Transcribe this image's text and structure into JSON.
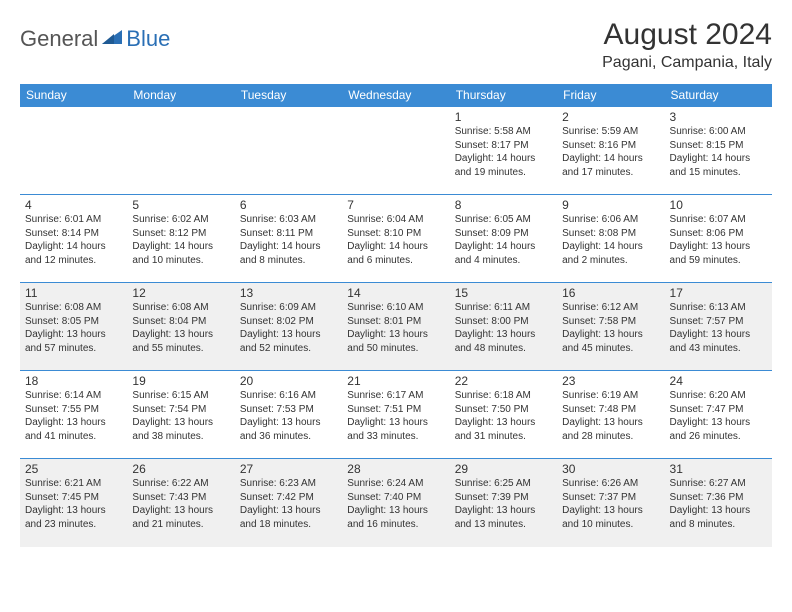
{
  "logo": {
    "general": "General",
    "blue": "Blue"
  },
  "header": {
    "title": "August 2024",
    "location": "Pagani, Campania, Italy"
  },
  "colors": {
    "header_bg": "#3b8bd4",
    "header_text": "#ffffff",
    "row_alt_bg": "#f0f0f0",
    "row_bg": "#ffffff",
    "border": "#3b8bd4",
    "text": "#333333",
    "logo_blue": "#2a6fb5",
    "logo_gray": "#555555"
  },
  "typography": {
    "title_fontsize": 30,
    "location_fontsize": 16,
    "dayhead_fontsize": 12,
    "daynum_fontsize": 12,
    "cell_fontsize": 10
  },
  "dayNames": [
    "Sunday",
    "Monday",
    "Tuesday",
    "Wednesday",
    "Thursday",
    "Friday",
    "Saturday"
  ],
  "weeks": [
    {
      "alt": false,
      "days": [
        null,
        null,
        null,
        null,
        {
          "num": "1",
          "sunrise": "5:58 AM",
          "sunset": "8:17 PM",
          "daylight": "14 hours and 19 minutes."
        },
        {
          "num": "2",
          "sunrise": "5:59 AM",
          "sunset": "8:16 PM",
          "daylight": "14 hours and 17 minutes."
        },
        {
          "num": "3",
          "sunrise": "6:00 AM",
          "sunset": "8:15 PM",
          "daylight": "14 hours and 15 minutes."
        }
      ]
    },
    {
      "alt": false,
      "days": [
        {
          "num": "4",
          "sunrise": "6:01 AM",
          "sunset": "8:14 PM",
          "daylight": "14 hours and 12 minutes."
        },
        {
          "num": "5",
          "sunrise": "6:02 AM",
          "sunset": "8:12 PM",
          "daylight": "14 hours and 10 minutes."
        },
        {
          "num": "6",
          "sunrise": "6:03 AM",
          "sunset": "8:11 PM",
          "daylight": "14 hours and 8 minutes."
        },
        {
          "num": "7",
          "sunrise": "6:04 AM",
          "sunset": "8:10 PM",
          "daylight": "14 hours and 6 minutes."
        },
        {
          "num": "8",
          "sunrise": "6:05 AM",
          "sunset": "8:09 PM",
          "daylight": "14 hours and 4 minutes."
        },
        {
          "num": "9",
          "sunrise": "6:06 AM",
          "sunset": "8:08 PM",
          "daylight": "14 hours and 2 minutes."
        },
        {
          "num": "10",
          "sunrise": "6:07 AM",
          "sunset": "8:06 PM",
          "daylight": "13 hours and 59 minutes."
        }
      ]
    },
    {
      "alt": true,
      "days": [
        {
          "num": "11",
          "sunrise": "6:08 AM",
          "sunset": "8:05 PM",
          "daylight": "13 hours and 57 minutes."
        },
        {
          "num": "12",
          "sunrise": "6:08 AM",
          "sunset": "8:04 PM",
          "daylight": "13 hours and 55 minutes."
        },
        {
          "num": "13",
          "sunrise": "6:09 AM",
          "sunset": "8:02 PM",
          "daylight": "13 hours and 52 minutes."
        },
        {
          "num": "14",
          "sunrise": "6:10 AM",
          "sunset": "8:01 PM",
          "daylight": "13 hours and 50 minutes."
        },
        {
          "num": "15",
          "sunrise": "6:11 AM",
          "sunset": "8:00 PM",
          "daylight": "13 hours and 48 minutes."
        },
        {
          "num": "16",
          "sunrise": "6:12 AM",
          "sunset": "7:58 PM",
          "daylight": "13 hours and 45 minutes."
        },
        {
          "num": "17",
          "sunrise": "6:13 AM",
          "sunset": "7:57 PM",
          "daylight": "13 hours and 43 minutes."
        }
      ]
    },
    {
      "alt": false,
      "days": [
        {
          "num": "18",
          "sunrise": "6:14 AM",
          "sunset": "7:55 PM",
          "daylight": "13 hours and 41 minutes."
        },
        {
          "num": "19",
          "sunrise": "6:15 AM",
          "sunset": "7:54 PM",
          "daylight": "13 hours and 38 minutes."
        },
        {
          "num": "20",
          "sunrise": "6:16 AM",
          "sunset": "7:53 PM",
          "daylight": "13 hours and 36 minutes."
        },
        {
          "num": "21",
          "sunrise": "6:17 AM",
          "sunset": "7:51 PM",
          "daylight": "13 hours and 33 minutes."
        },
        {
          "num": "22",
          "sunrise": "6:18 AM",
          "sunset": "7:50 PM",
          "daylight": "13 hours and 31 minutes."
        },
        {
          "num": "23",
          "sunrise": "6:19 AM",
          "sunset": "7:48 PM",
          "daylight": "13 hours and 28 minutes."
        },
        {
          "num": "24",
          "sunrise": "6:20 AM",
          "sunset": "7:47 PM",
          "daylight": "13 hours and 26 minutes."
        }
      ]
    },
    {
      "alt": true,
      "days": [
        {
          "num": "25",
          "sunrise": "6:21 AM",
          "sunset": "7:45 PM",
          "daylight": "13 hours and 23 minutes."
        },
        {
          "num": "26",
          "sunrise": "6:22 AM",
          "sunset": "7:43 PM",
          "daylight": "13 hours and 21 minutes."
        },
        {
          "num": "27",
          "sunrise": "6:23 AM",
          "sunset": "7:42 PM",
          "daylight": "13 hours and 18 minutes."
        },
        {
          "num": "28",
          "sunrise": "6:24 AM",
          "sunset": "7:40 PM",
          "daylight": "13 hours and 16 minutes."
        },
        {
          "num": "29",
          "sunrise": "6:25 AM",
          "sunset": "7:39 PM",
          "daylight": "13 hours and 13 minutes."
        },
        {
          "num": "30",
          "sunrise": "6:26 AM",
          "sunset": "7:37 PM",
          "daylight": "13 hours and 10 minutes."
        },
        {
          "num": "31",
          "sunrise": "6:27 AM",
          "sunset": "7:36 PM",
          "daylight": "13 hours and 8 minutes."
        }
      ]
    }
  ],
  "labels": {
    "sunrise": "Sunrise: ",
    "sunset": "Sunset: ",
    "daylight": "Daylight: "
  }
}
